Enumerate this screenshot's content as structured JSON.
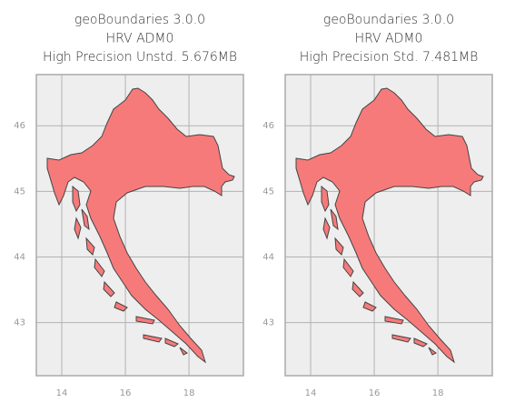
{
  "chart_data": [
    {
      "type": "map",
      "title": [
        "geoBoundaries 3.0.0",
        "HRV ADM0",
        "High Precision Unstd. 5.676MB"
      ],
      "xlim": [
        13.2,
        19.71
      ],
      "xticks": [
        14,
        16,
        18
      ],
      "ylim": [
        42.19,
        46.78
      ],
      "yticks": [
        43,
        44,
        45,
        46
      ],
      "grid": true,
      "color": "#f77a7a"
    },
    {
      "type": "map",
      "title": [
        "geoBoundaries 3.0.0",
        "HRV ADM0",
        "High Precision Std. 7.481MB"
      ],
      "xlim": [
        13.2,
        19.71
      ],
      "xticks": [
        14,
        16,
        18
      ],
      "ylim": [
        42.19,
        46.78
      ],
      "yticks": [
        43,
        44,
        45,
        46
      ],
      "grid": true,
      "color": "#f77a7a"
    }
  ]
}
